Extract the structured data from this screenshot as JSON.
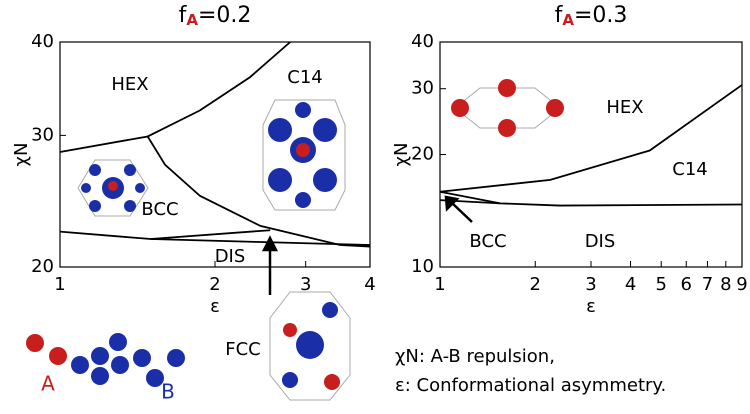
{
  "chart_data": [
    {
      "type": "line",
      "title": {
        "symbol": "f",
        "sub": "A",
        "rest": "=0.2"
      },
      "xlabel": "ε",
      "ylabel": "χN",
      "xscale": "log",
      "yscale": "log",
      "xlim": [
        1,
        4
      ],
      "ylim": [
        20,
        40
      ],
      "xticks": [
        1,
        2,
        3,
        4
      ],
      "yticks": [
        20,
        30,
        40
      ],
      "series": [
        {
          "color": "#000000",
          "x": [
            1,
            1.48,
            1.87,
            2.34,
            2.8
          ],
          "values": [
            28.5,
            29.9,
            32.4,
            35.9,
            40
          ]
        },
        {
          "color": "#000000",
          "x": [
            1.48,
            1.6,
            1.87,
            2.45,
            3.5,
            4
          ],
          "values": [
            29.9,
            27.4,
            24.9,
            22.7,
            21.4,
            21.3
          ]
        },
        {
          "color": "#000000",
          "x": [
            1,
            1.5,
            2.45,
            4
          ],
          "values": [
            22.3,
            21.8,
            21.6,
            21.4
          ]
        },
        {
          "color": "#000000",
          "x": [
            1.5,
            2.56
          ],
          "values": [
            21.8,
            22.4
          ]
        }
      ],
      "annotations": [
        "HEX",
        "C14",
        "BCC",
        "DIS",
        "FCC"
      ]
    },
    {
      "type": "line",
      "title": {
        "symbol": "f",
        "sub": "A",
        "rest": "=0.3"
      },
      "xlabel": "ε",
      "ylabel": "χN",
      "xscale": "log",
      "yscale": "log",
      "xlim": [
        1,
        9
      ],
      "ylim": [
        10,
        40
      ],
      "xticks": [
        1,
        2,
        3,
        4,
        5,
        6,
        7,
        8,
        9
      ],
      "yticks": [
        10,
        20,
        30,
        40
      ],
      "series": [
        {
          "color": "#000000",
          "x": [
            1,
            2.23,
            4.6,
            9
          ],
          "values": [
            15.9,
            17.1,
            20.5,
            30.7
          ]
        },
        {
          "color": "#000000",
          "x": [
            1,
            1.55,
            2.39,
            9
          ],
          "values": [
            15.9,
            14.8,
            14.6,
            14.7
          ]
        },
        {
          "color": "#000000",
          "x": [
            1,
            1.55
          ],
          "values": [
            15.1,
            14.8
          ]
        }
      ],
      "annotations": [
        "HEX",
        "C14",
        "BCC",
        "DIS"
      ]
    }
  ],
  "notes": {
    "molecule_a": "A",
    "molecule_b": "B",
    "line1": "χN: A-B repulsion,",
    "line2": "ε: Conformational asymmetry."
  }
}
